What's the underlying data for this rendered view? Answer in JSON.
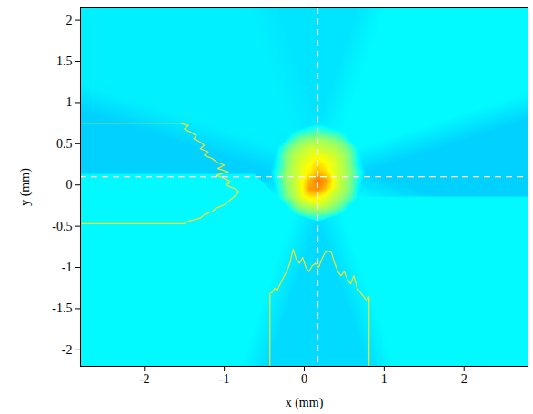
{
  "chart_data": {
    "type": "heatmap",
    "xlabel": "x (mm)",
    "ylabel": "y (mm)",
    "xlim": [
      -2.8,
      2.8
    ],
    "ylim": [
      -2.2,
      2.15
    ],
    "xticks": [
      -2,
      -1,
      0,
      1,
      2
    ],
    "yticks": [
      -2,
      -1.5,
      -1,
      -0.5,
      0,
      0.5,
      1,
      1.5,
      2
    ],
    "crosshair": {
      "x": 0.17,
      "y": 0.1,
      "color": "#ffffff",
      "line_style": "dashed"
    },
    "intensity": {
      "x": [
        -0.43,
        -0.33,
        -0.23,
        -0.13,
        -0.03,
        0.07,
        0.17,
        0.27,
        0.37,
        0.47,
        0.57,
        0.67,
        0.77
      ],
      "y": [
        0.75,
        0.65,
        0.55,
        0.45,
        0.35,
        0.25,
        0.15,
        0.05,
        -0.05,
        -0.15,
        -0.25,
        -0.35,
        -0.45
      ],
      "values": [
        [
          null,
          null,
          null,
          null,
          null,
          null,
          0.35,
          null,
          null,
          null,
          null,
          null,
          null
        ],
        [
          null,
          null,
          null,
          0.36,
          0.4,
          0.42,
          0.44,
          0.42,
          0.4,
          0.37,
          null,
          null,
          null
        ],
        [
          null,
          null,
          0.36,
          0.45,
          0.5,
          0.52,
          0.54,
          0.52,
          0.5,
          0.46,
          0.37,
          null,
          null
        ],
        [
          null,
          0.36,
          0.46,
          0.52,
          0.55,
          0.58,
          0.57,
          0.56,
          0.55,
          0.52,
          0.47,
          0.37,
          null
        ],
        [
          null,
          0.38,
          0.5,
          0.55,
          0.58,
          0.6,
          0.62,
          0.6,
          0.58,
          0.55,
          0.5,
          0.38,
          null
        ],
        [
          null,
          0.38,
          0.5,
          0.56,
          0.6,
          0.62,
          0.66,
          0.63,
          0.6,
          0.56,
          0.5,
          0.38,
          null
        ],
        [
          0.33,
          0.42,
          0.52,
          0.56,
          0.6,
          0.64,
          0.7,
          0.66,
          0.6,
          0.56,
          0.52,
          0.42,
          0.33
        ],
        [
          null,
          0.4,
          0.52,
          0.56,
          0.62,
          0.7,
          0.76,
          0.72,
          0.62,
          0.56,
          0.5,
          0.4,
          null
        ],
        [
          null,
          0.38,
          0.5,
          0.56,
          0.62,
          0.72,
          0.74,
          0.68,
          0.6,
          0.55,
          0.5,
          0.38,
          null
        ],
        [
          null,
          0.37,
          0.48,
          0.54,
          0.6,
          0.64,
          0.64,
          0.6,
          0.56,
          0.52,
          0.47,
          0.37,
          null
        ],
        [
          null,
          null,
          0.37,
          0.48,
          0.54,
          0.56,
          0.58,
          0.56,
          0.52,
          0.47,
          0.37,
          null,
          null
        ],
        [
          null,
          null,
          null,
          0.37,
          0.44,
          0.47,
          0.48,
          0.46,
          0.43,
          0.37,
          null,
          null,
          null
        ],
        [
          null,
          null,
          null,
          null,
          null,
          null,
          0.34,
          null,
          null,
          null,
          null,
          null,
          null
        ]
      ],
      "zlim": [
        0,
        1
      ]
    },
    "profiles": {
      "x_profile": {
        "color": "#f2e62a",
        "x": [
          -0.43,
          -0.43,
          -0.4,
          -0.37,
          -0.34,
          -0.3,
          -0.26,
          -0.22,
          -0.18,
          -0.14,
          -0.1,
          -0.06,
          -0.02,
          0.02,
          0.06,
          0.1,
          0.14,
          0.18,
          0.22,
          0.26,
          0.3,
          0.34,
          0.38,
          0.42,
          0.46,
          0.5,
          0.54,
          0.58,
          0.62,
          0.66,
          0.7,
          0.74,
          0.78,
          0.81,
          0.81
        ],
        "y": [
          -2.2,
          -1.32,
          -1.3,
          -1.25,
          -1.28,
          -1.2,
          -1.12,
          -1.05,
          -0.95,
          -0.78,
          -0.9,
          -0.95,
          -0.88,
          -1.0,
          -1.05,
          -0.98,
          -0.95,
          -1.0,
          -0.9,
          -0.82,
          -0.8,
          -0.82,
          -0.95,
          -1.05,
          -1.1,
          -1.05,
          -1.15,
          -1.2,
          -1.1,
          -1.25,
          -1.3,
          -1.35,
          -1.4,
          -1.35,
          -2.2
        ]
      },
      "y_profile": {
        "color": "#f2e62a",
        "y": [
          0.75,
          0.75,
          0.72,
          0.68,
          0.64,
          0.6,
          0.56,
          0.52,
          0.48,
          0.44,
          0.4,
          0.36,
          0.32,
          0.28,
          0.24,
          0.2,
          0.16,
          0.12,
          0.08,
          0.04,
          0.0,
          -0.04,
          -0.08,
          -0.12,
          -0.16,
          -0.2,
          -0.24,
          -0.28,
          -0.32,
          -0.36,
          -0.4,
          -0.44,
          -0.47,
          -0.47
        ],
        "x": [
          -2.8,
          -1.55,
          -1.45,
          -1.5,
          -1.42,
          -1.35,
          -1.38,
          -1.3,
          -1.25,
          -1.3,
          -1.2,
          -1.25,
          -1.15,
          -1.1,
          -1.0,
          -1.08,
          -0.95,
          -1.1,
          -1.0,
          -0.92,
          -0.98,
          -0.88,
          -0.82,
          -0.85,
          -0.9,
          -0.95,
          -1.0,
          -1.1,
          -1.15,
          -1.25,
          -1.3,
          -1.45,
          -1.5,
          -2.8
        ]
      }
    }
  }
}
